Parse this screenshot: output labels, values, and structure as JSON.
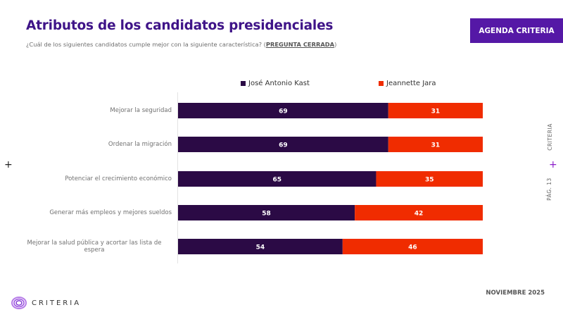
{
  "header": {
    "title": "Atributos de los candidatos presidenciales",
    "subtitle_prefix": "¿Cuál de los siguientes candidatos cumple mejor con la siguiente característica? (",
    "subtitle_emphasis": "PREGUNTA CERRADA",
    "subtitle_suffix": ")",
    "badge": "AGENDA CRITERIA"
  },
  "side": {
    "brand": "CRITERIA",
    "page": "PÁG. 13"
  },
  "footer": {
    "date": "NOVIEMBRE 2025",
    "logo_text": "CRITERIA"
  },
  "colors": {
    "kast": "#2b0a45",
    "jara": "#f02c00",
    "accent": "#5518a6"
  },
  "chart_data": {
    "type": "bar",
    "orientation": "horizontal",
    "stacked": true,
    "title": "Atributos de los candidatos presidenciales",
    "xlabel": "",
    "ylabel": "",
    "xlim": [
      0,
      100
    ],
    "legend_position": "top",
    "categories": [
      "Mejorar la seguridad",
      "Ordenar la migración",
      "Potenciar el crecimiento económico",
      "Generar más empleos y mejores sueldos",
      "Mejorar la salud pública y acortar las lista de espera"
    ],
    "category_lines": [
      [
        "Mejorar la seguridad"
      ],
      [
        "Ordenar la migración"
      ],
      [
        "Potenciar el crecimiento económico"
      ],
      [
        "Generar más empleos y mejores sueldos"
      ],
      [
        "Mejorar la salud pública y acortar las lista de",
        "espera"
      ]
    ],
    "series": [
      {
        "name": "José Antonio Kast",
        "color": "#2b0a45",
        "values": [
          69,
          69,
          65,
          58,
          54
        ]
      },
      {
        "name": "Jeannette Jara",
        "color": "#f02c00",
        "values": [
          31,
          31,
          35,
          42,
          46
        ]
      }
    ]
  }
}
